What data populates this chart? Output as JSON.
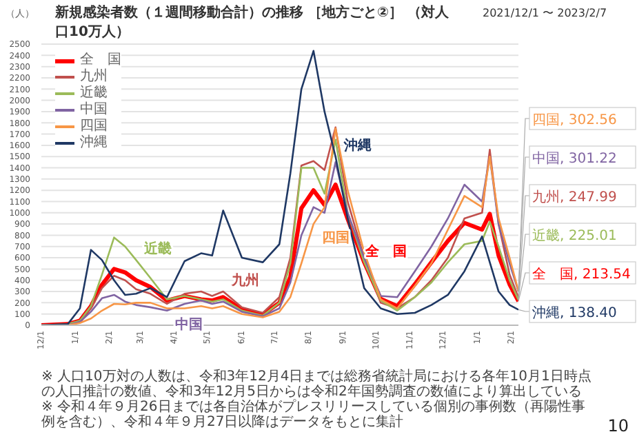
{
  "chart_data": {
    "type": "line",
    "title": "新規感染者数（１週間移動合計）の推移 ［地方ごと②］ （対人口10万人）",
    "subtitle": "2021/12/1 〜 2023/2/7",
    "ylabel": "（人）",
    "x": [
      "2021-12-01",
      "2021-12-25",
      "2022-01-05",
      "2022-01-15",
      "2022-01-25",
      "2022-02-05",
      "2022-02-15",
      "2022-02-25",
      "2022-03-10",
      "2022-03-25",
      "2022-04-10",
      "2022-04-25",
      "2022-05-05",
      "2022-05-15",
      "2022-06-01",
      "2022-06-20",
      "2022-07-05",
      "2022-07-15",
      "2022-07-25",
      "2022-08-05",
      "2022-08-15",
      "2022-08-25",
      "2022-09-05",
      "2022-09-20",
      "2022-10-05",
      "2022-10-20",
      "2022-11-05",
      "2022-11-20",
      "2022-12-05",
      "2022-12-20",
      "2023-01-05",
      "2023-01-12",
      "2023-01-20",
      "2023-01-30",
      "2023-02-07"
    ],
    "xlim": [
      "2021-12-01",
      "2023-02-07"
    ],
    "ylim": [
      0,
      2500
    ],
    "yticks": [
      0,
      100,
      200,
      300,
      400,
      500,
      600,
      700,
      800,
      900,
      1000,
      1100,
      1200,
      1300,
      1400,
      1500,
      1600,
      1700,
      1800,
      1900,
      2000,
      2100,
      2200,
      2300,
      2400,
      2500
    ],
    "xticks": [
      {
        "value": "2021-12-01",
        "label": "12/1"
      },
      {
        "value": "2022-01-01",
        "label": "1/1"
      },
      {
        "value": "2022-02-01",
        "label": "2/1"
      },
      {
        "value": "2022-03-01",
        "label": "3/1"
      },
      {
        "value": "2022-04-01",
        "label": "4/1"
      },
      {
        "value": "2022-05-01",
        "label": "5/1"
      },
      {
        "value": "2022-06-01",
        "label": "6/1"
      },
      {
        "value": "2022-07-01",
        "label": "7/1"
      },
      {
        "value": "2022-08-01",
        "label": "8/1"
      },
      {
        "value": "2022-09-01",
        "label": "9/1"
      },
      {
        "value": "2022-10-01",
        "label": "10/1"
      },
      {
        "value": "2022-11-01",
        "label": "11/1"
      },
      {
        "value": "2022-12-01",
        "label": "12/1"
      },
      {
        "value": "2023-01-01",
        "label": "1/1"
      },
      {
        "value": "2023-02-01",
        "label": "2/1"
      }
    ],
    "grid": "y",
    "legend": "top left",
    "series": [
      {
        "name": "全　国",
        "color": "#ff0000",
        "values": [
          0,
          10,
          40,
          170,
          360,
          500,
          470,
          400,
          340,
          220,
          260,
          230,
          220,
          250,
          140,
          95,
          200,
          430,
          1040,
          1200,
          1070,
          1250,
          945,
          560,
          235,
          170,
          365,
          560,
          750,
          910,
          850,
          990,
          620,
          363,
          213.54
        ]
      },
      {
        "name": "九州",
        "color": "#c0504d",
        "values": [
          0,
          10,
          40,
          150,
          330,
          440,
          400,
          320,
          280,
          190,
          280,
          300,
          260,
          300,
          160,
          110,
          250,
          600,
          1420,
          1460,
          1380,
          1760,
          1100,
          600,
          200,
          150,
          250,
          400,
          600,
          950,
          1000,
          1560,
          900,
          450,
          247.99
        ]
      },
      {
        "name": "近畿",
        "color": "#9bbb59",
        "values": [
          0,
          10,
          40,
          170,
          450,
          780,
          700,
          580,
          420,
          230,
          260,
          230,
          210,
          230,
          130,
          85,
          200,
          550,
          1400,
          1400,
          1170,
          1650,
          1000,
          560,
          220,
          130,
          250,
          380,
          560,
          720,
          750,
          920,
          700,
          400,
          225.01
        ]
      },
      {
        "name": "中国",
        "color": "#8064a2",
        "values": [
          0,
          0,
          30,
          120,
          240,
          270,
          210,
          180,
          160,
          130,
          190,
          220,
          190,
          210,
          120,
          80,
          150,
          380,
          800,
          1050,
          1000,
          1450,
          1000,
          600,
          260,
          250,
          480,
          700,
          950,
          1250,
          1100,
          1500,
          900,
          550,
          301.22
        ]
      },
      {
        "name": "四国",
        "color": "#f79646",
        "values": [
          0,
          0,
          20,
          60,
          130,
          190,
          185,
          200,
          200,
          150,
          150,
          170,
          150,
          170,
          100,
          70,
          120,
          250,
          550,
          900,
          1050,
          1750,
          1200,
          650,
          230,
          150,
          350,
          550,
          850,
          1150,
          1050,
          1500,
          950,
          600,
          302.56
        ]
      },
      {
        "name": "沖縄",
        "color": "#1f3864",
        "values": [
          0,
          10,
          150,
          670,
          580,
          400,
          270,
          280,
          330,
          250,
          570,
          640,
          620,
          1020,
          600,
          560,
          720,
          1350,
          2100,
          2440,
          1900,
          1500,
          950,
          330,
          150,
          100,
          110,
          180,
          270,
          480,
          790,
          560,
          300,
          180,
          138.4
        ]
      }
    ],
    "annotations": [
      {
        "text": "近畿",
        "x": "2022-02-25",
        "y": 580
      },
      {
        "text": "中国",
        "x": "2022-03-25",
        "y": 130
      },
      {
        "text": "九州",
        "x": "2022-05-15",
        "y": 300
      },
      {
        "text": "四国",
        "x": "2022-08-05",
        "y": 900
      },
      {
        "text": "全　国",
        "x": "2022-09-20",
        "y": 560
      },
      {
        "text": "沖縄",
        "x": "2022-08-25",
        "y": 1500
      },
      {
        "text": "四国, 302.56",
        "x": "2023-02-07",
        "y": 302.56
      },
      {
        "text": "中国, 301.22",
        "x": "2023-02-07",
        "y": 301.22
      },
      {
        "text": "九州, 247.99",
        "x": "2023-02-07",
        "y": 247.99
      },
      {
        "text": "近畿, 225.01",
        "x": "2023-02-07",
        "y": 225.01
      },
      {
        "text": "全　国, 213.54",
        "x": "2023-02-07",
        "y": 213.54
      },
      {
        "text": "沖縄, 138.40",
        "x": "2023-02-07",
        "y": 138.4
      },
      "※ 人口10万対の人数は、令和3年12月4日までは総務省統計局における各年10月1日時点の人口推計の数値、令和3年12月5日からは令和2年国勢調査の数値により算出している",
      "※ 令和４年９月26日までは各自治体がプレスリリースしている個別の事例数（再陽性事例を含む）、令和４年９月27日以降はデータをもとに集計",
      "10"
    ]
  }
}
